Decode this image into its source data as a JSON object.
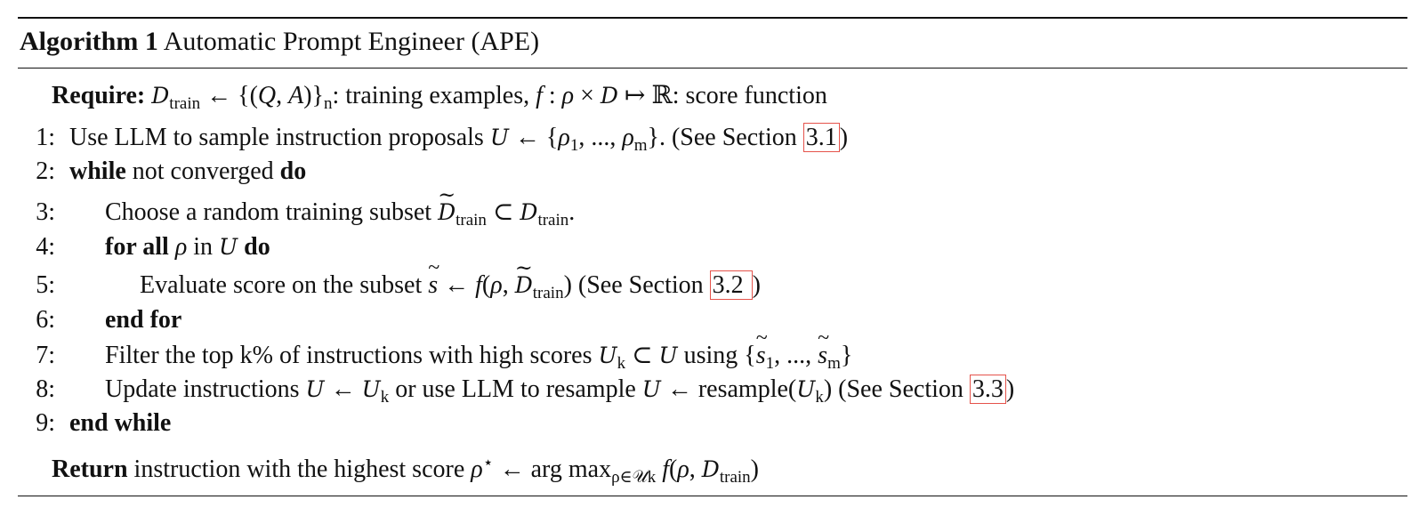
{
  "title": {
    "label": "Algorithm 1",
    "text": "Automatic Prompt Engineer (APE)"
  },
  "link_color": "#e5534b",
  "lines": [
    {
      "num": "",
      "indent": 0,
      "top": 0,
      "segs": [
        {
          "t": "b",
          "text": "Require: "
        },
        {
          "t": "cal",
          "text": "D"
        },
        {
          "t": "sub",
          "text": "train"
        },
        {
          "t": "r",
          "text": " ← {("
        },
        {
          "t": "m",
          "text": "Q"
        },
        {
          "t": "r",
          "text": ", "
        },
        {
          "t": "m",
          "text": "A"
        },
        {
          "t": "r",
          "text": ")}"
        },
        {
          "t": "sub",
          "text": "n"
        },
        {
          "t": "r",
          "text": ": training examples, "
        },
        {
          "t": "m",
          "text": "f"
        },
        {
          "t": "r",
          "text": " : "
        },
        {
          "t": "m",
          "text": "ρ"
        },
        {
          "t": "r",
          "text": " × "
        },
        {
          "t": "cal",
          "text": "D"
        },
        {
          "t": "r",
          "text": " ↦ ℝ: score function"
        }
      ]
    },
    {
      "num": "1:",
      "indent": 1,
      "segs": [
        {
          "t": "r",
          "text": "Use LLM to sample instruction proposals "
        },
        {
          "t": "cal",
          "text": "U"
        },
        {
          "t": "r",
          "text": " ← {"
        },
        {
          "t": "m",
          "text": "ρ"
        },
        {
          "t": "sub",
          "text": "1"
        },
        {
          "t": "r",
          "text": ", ..., "
        },
        {
          "t": "m",
          "text": "ρ"
        },
        {
          "t": "sub",
          "text": "m"
        },
        {
          "t": "r",
          "text": "}. (See Section "
        },
        {
          "t": "link",
          "text": "3.1"
        },
        {
          "t": "r",
          "text": ")"
        }
      ]
    },
    {
      "num": "2:",
      "indent": 1,
      "segs": [
        {
          "t": "b",
          "text": "while"
        },
        {
          "t": "r",
          "text": " not converged "
        },
        {
          "t": "b",
          "text": "do"
        }
      ]
    },
    {
      "num": "3:",
      "indent": 2,
      "segs": [
        {
          "t": "r",
          "text": "Choose a random training subset "
        },
        {
          "t": "caltl",
          "text": "D"
        },
        {
          "t": "sub",
          "text": "train"
        },
        {
          "t": "r",
          "text": " ⊂ "
        },
        {
          "t": "cal",
          "text": "D"
        },
        {
          "t": "sub",
          "text": "train"
        },
        {
          "t": "r",
          "text": "."
        }
      ]
    },
    {
      "num": "4:",
      "indent": 2,
      "segs": [
        {
          "t": "b",
          "text": "for all "
        },
        {
          "t": "m",
          "text": "ρ"
        },
        {
          "t": "r",
          "text": " in "
        },
        {
          "t": "cal",
          "text": "U"
        },
        {
          "t": "b",
          "text": " do"
        }
      ]
    },
    {
      "num": "5:",
      "indent": 3,
      "segs": [
        {
          "t": "r",
          "text": "Evaluate score on the subset "
        },
        {
          "t": "mtl",
          "text": "s"
        },
        {
          "t": "r",
          "text": " ← "
        },
        {
          "t": "m",
          "text": "f"
        },
        {
          "t": "r",
          "text": "("
        },
        {
          "t": "m",
          "text": "ρ"
        },
        {
          "t": "r",
          "text": ", "
        },
        {
          "t": "caltl",
          "text": "D"
        },
        {
          "t": "sub",
          "text": "train"
        },
        {
          "t": "r",
          "text": ") (See Section "
        },
        {
          "t": "link",
          "text": "3.2 "
        },
        {
          "t": "r",
          "text": ")"
        }
      ]
    },
    {
      "num": "6:",
      "indent": 2,
      "segs": [
        {
          "t": "b",
          "text": "end for"
        }
      ]
    },
    {
      "num": "7:",
      "indent": 2,
      "segs": [
        {
          "t": "r",
          "text": "Filter the top k% of instructions with high scores "
        },
        {
          "t": "cal",
          "text": "U"
        },
        {
          "t": "sub",
          "text": "k"
        },
        {
          "t": "r",
          "text": " ⊂ "
        },
        {
          "t": "cal",
          "text": "U"
        },
        {
          "t": "r",
          "text": " using {"
        },
        {
          "t": "mtl",
          "text": "s"
        },
        {
          "t": "sub",
          "text": "1"
        },
        {
          "t": "r",
          "text": ", ..., "
        },
        {
          "t": "mtl",
          "text": "s"
        },
        {
          "t": "sub",
          "text": "m"
        },
        {
          "t": "r",
          "text": "}"
        }
      ]
    },
    {
      "num": "8:",
      "indent": 2,
      "segs": [
        {
          "t": "r",
          "text": "Update instructions "
        },
        {
          "t": "cal",
          "text": "U"
        },
        {
          "t": "r",
          "text": " ← "
        },
        {
          "t": "cal",
          "text": "U"
        },
        {
          "t": "sub",
          "text": "k"
        },
        {
          "t": "r",
          "text": " or use LLM to resample "
        },
        {
          "t": "cal",
          "text": "U"
        },
        {
          "t": "r",
          "text": " ← resample("
        },
        {
          "t": "cal",
          "text": "U"
        },
        {
          "t": "sub",
          "text": "k"
        },
        {
          "t": "r",
          "text": ") (See Section "
        },
        {
          "t": "link",
          "text": "3.3"
        },
        {
          "t": "r",
          "text": ")"
        }
      ]
    },
    {
      "num": "9:",
      "indent": 1,
      "segs": [
        {
          "t": "b",
          "text": "end while"
        }
      ]
    },
    {
      "num": "",
      "indent": 0,
      "segs": [
        {
          "t": "b",
          "text": "Return"
        },
        {
          "t": "r",
          "text": " instruction with the highest score "
        },
        {
          "t": "m",
          "text": "ρ"
        },
        {
          "t": "sup",
          "text": "⋆"
        },
        {
          "t": "r",
          "text": " ← arg max"
        },
        {
          "t": "sub",
          "text": "ρ∈𝒰k"
        },
        {
          "t": "r",
          "text": " "
        },
        {
          "t": "m",
          "text": "f"
        },
        {
          "t": "r",
          "text": "("
        },
        {
          "t": "m",
          "text": "ρ"
        },
        {
          "t": "r",
          "text": ", "
        },
        {
          "t": "cal",
          "text": "D"
        },
        {
          "t": "sub",
          "text": "train"
        },
        {
          "t": "r",
          "text": ")"
        }
      ]
    }
  ]
}
